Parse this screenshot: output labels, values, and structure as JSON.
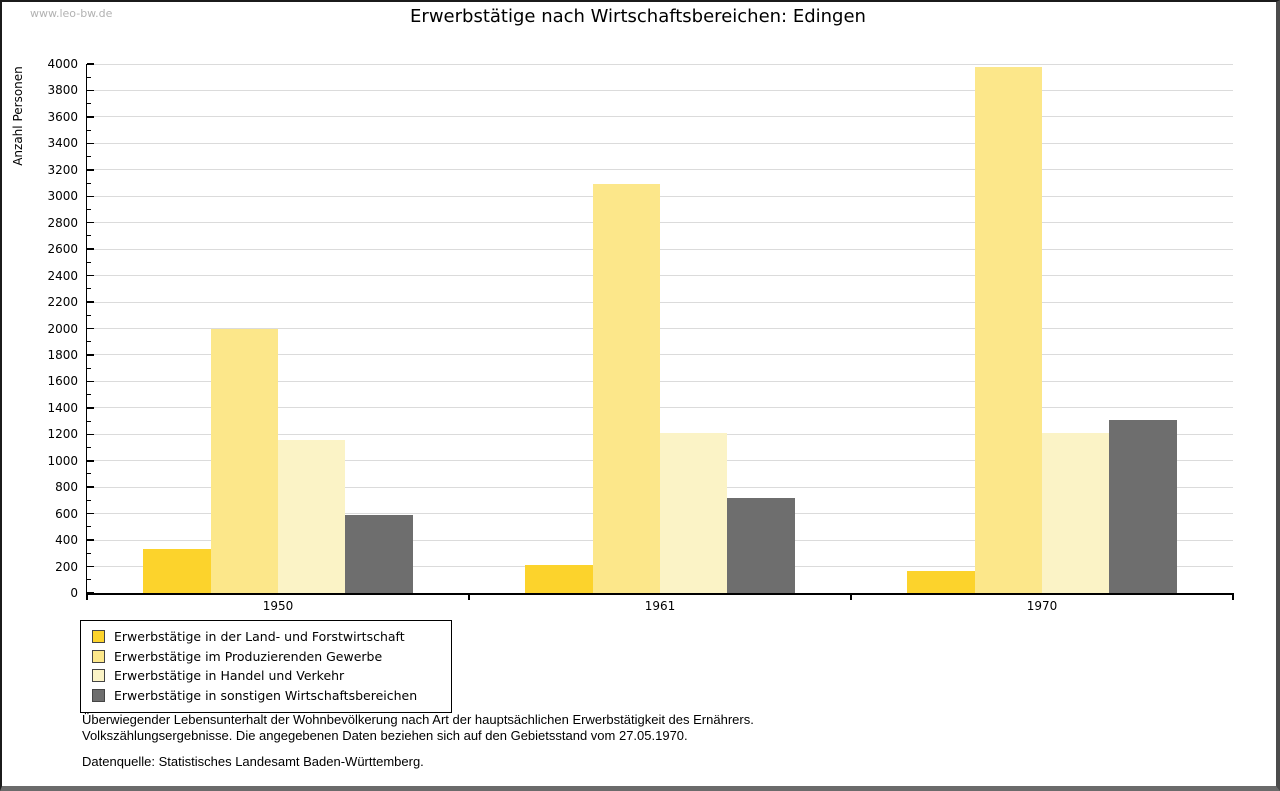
{
  "watermark": "www.leo-bw.de",
  "chart_data": {
    "type": "bar",
    "title": "Erwerbstätige nach Wirtschaftsbereichen: Edingen",
    "ylabel": "Anzahl Personen",
    "xlabel": "",
    "categories": [
      "1950",
      "1961",
      "1970"
    ],
    "series": [
      {
        "name": "Erwerbstätige in der Land- und Forstwirtschaft",
        "color": "#FCD32C",
        "values": [
          330,
          210,
          170
        ]
      },
      {
        "name": "Erwerbstätige im Produzierenden Gewerbe",
        "color": "#FCE78A",
        "values": [
          2000,
          3090,
          3980
        ]
      },
      {
        "name": "Erwerbstätige in Handel und Verkehr",
        "color": "#FBF3C6",
        "values": [
          1160,
          1210,
          1210
        ]
      },
      {
        "name": "Erwerbstätige in sonstigen Wirtschaftsbereichen",
        "color": "#6E6E6E",
        "values": [
          590,
          720,
          1310
        ]
      }
    ],
    "ylim": [
      0,
      4000
    ],
    "ytick_step": 200,
    "yminor_step": 100,
    "grid": true,
    "legend_position": "bottom-left"
  },
  "footer": {
    "note_line1": "Überwiegender Lebensunterhalt der Wohnbevölkerung nach Art der hauptsächlichen Erwerbstätigkeit des Ernährers.",
    "note_line2": "Volkszählungsergebnisse. Die angegebenen Daten beziehen sich auf den Gebietsstand vom 27.05.1970.",
    "source": "Datenquelle: Statistisches Landesamt Baden-Württemberg."
  },
  "colors": {
    "gridline": "#DBDBDB",
    "axis": "#000000",
    "watermark": "#B2B2B2",
    "background": "#FFFFFF"
  }
}
